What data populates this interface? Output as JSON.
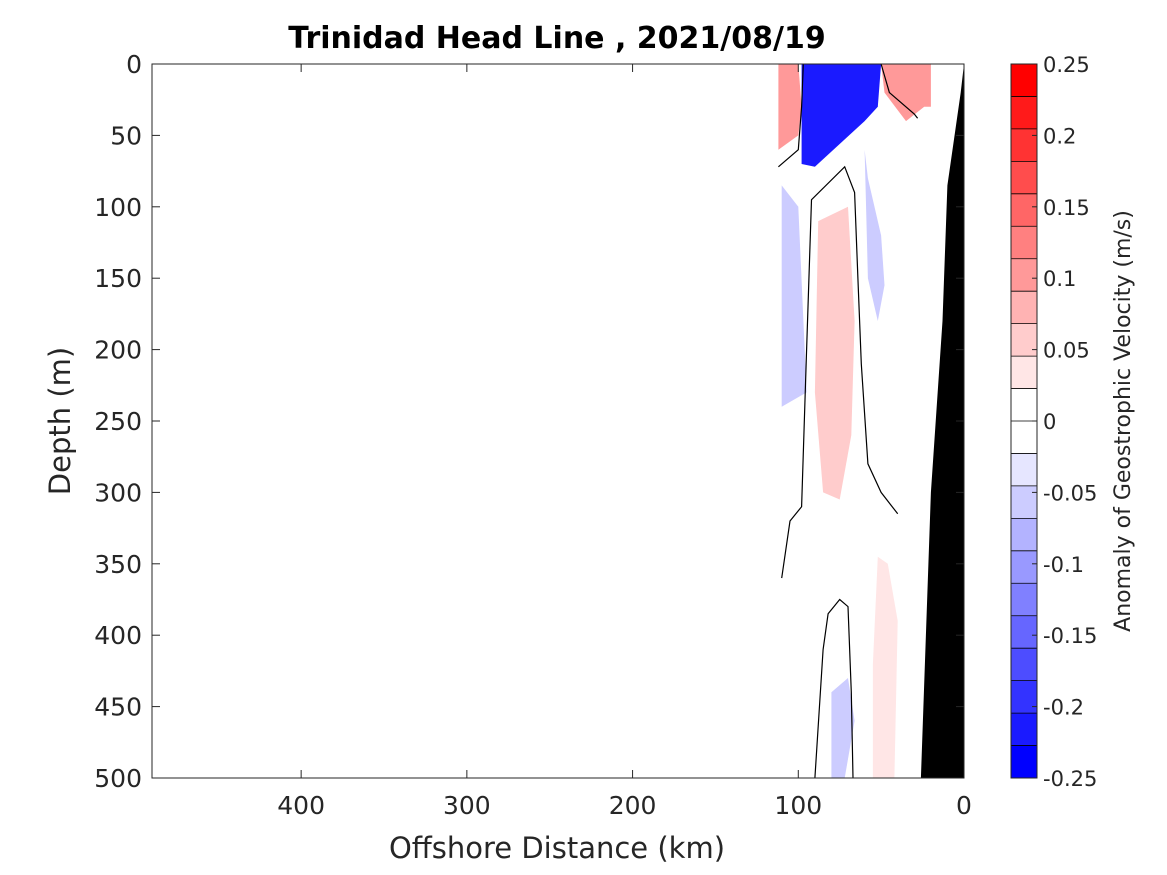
{
  "chart_data": {
    "type": "contour",
    "title": "Trinidad Head Line , 2021/08/19",
    "xlabel": "Offshore Distance (km)",
    "ylabel": "Depth (m)",
    "xlim": [
      490,
      0
    ],
    "ylim": [
      0,
      500
    ],
    "x_reversed": true,
    "y_reversed": true,
    "x_ticks": [
      "400",
      "300",
      "200",
      "100",
      "0"
    ],
    "y_ticks": [
      "0",
      "50",
      "100",
      "150",
      "200",
      "250",
      "300",
      "350",
      "400",
      "450",
      "500"
    ],
    "colorbar": {
      "label": "Anomaly of Geostrophic Velocity (m/s)",
      "range": [
        -0.25,
        0.25
      ],
      "levels": [
        -0.25,
        -0.225,
        -0.2,
        -0.175,
        -0.15,
        -0.125,
        -0.1,
        -0.075,
        -0.05,
        -0.025,
        0,
        0.025,
        0.05,
        0.075,
        0.1,
        0.125,
        0.15,
        0.175,
        0.2,
        0.225,
        0.25
      ],
      "tick_labels": [
        "0.25",
        "0.2",
        "0.15",
        "0.1",
        "0.05",
        "0",
        "-0.05",
        "-0.1",
        "-0.15",
        "-0.2",
        "-0.25"
      ],
      "colors": [
        "#0000ff",
        "#1a1aff",
        "#3333ff",
        "#4d4dff",
        "#6666ff",
        "#8080ff",
        "#9999ff",
        "#b3b3ff",
        "#ccccff",
        "#e6e6ff",
        "#ffffff",
        "#ffffff",
        "#ffe6e6",
        "#ffcccc",
        "#ffb3b3",
        "#ff9999",
        "#ff8080",
        "#ff6666",
        "#ff4d4d",
        "#ff3333",
        "#ff1a1a",
        "#ff0000"
      ]
    },
    "regions": [
      {
        "name": "surface-positive-west",
        "value": 0.1,
        "x": [
          112,
          112,
          100,
          98,
          100,
          112
        ],
        "y": [
          0,
          60,
          50,
          30,
          0,
          0
        ]
      },
      {
        "name": "surface-negative-core",
        "value": -0.22,
        "x": [
          98,
          98,
          90,
          60,
          52,
          50,
          65,
          98
        ],
        "y": [
          0,
          70,
          72,
          40,
          30,
          0,
          0,
          0
        ]
      },
      {
        "name": "surface-positive-east",
        "value": 0.12,
        "x": [
          50,
          48,
          35,
          24,
          20,
          20,
          50
        ],
        "y": [
          0,
          20,
          40,
          30,
          30,
          0,
          0
        ]
      },
      {
        "name": "upper-negative-west",
        "value": -0.04,
        "x": [
          110,
          110,
          95,
          100,
          110
        ],
        "y": [
          85,
          240,
          230,
          100,
          85
        ]
      },
      {
        "name": "midwater-positive-core",
        "value": 0.07,
        "x": [
          88,
          90,
          85,
          75,
          68,
          66,
          70,
          88
        ],
        "y": [
          110,
          230,
          300,
          305,
          260,
          180,
          100,
          110
        ]
      },
      {
        "name": "upper-negative-east",
        "value": -0.04,
        "x": [
          60,
          58,
          52,
          48,
          50,
          58,
          60
        ],
        "y": [
          60,
          150,
          180,
          155,
          120,
          80,
          60
        ]
      },
      {
        "name": "deep-positive-east",
        "value": 0.03,
        "x": [
          52,
          55,
          55,
          42,
          40,
          46,
          52
        ],
        "y": [
          345,
          420,
          500,
          500,
          390,
          350,
          345
        ]
      },
      {
        "name": "deep-negative",
        "value": -0.04,
        "x": [
          80,
          80,
          72,
          66,
          70,
          80
        ],
        "y": [
          440,
          500,
          500,
          460,
          430,
          440
        ]
      }
    ],
    "zero_contours": [
      {
        "x": [
          112,
          100,
          98,
          97
        ],
        "y": [
          72,
          60,
          30,
          0
        ]
      },
      {
        "x": [
          110,
          105,
          98,
          95,
          92,
          72,
          66,
          64,
          62,
          58,
          50,
          40
        ],
        "y": [
          360,
          320,
          310,
          200,
          95,
          72,
          90,
          150,
          210,
          280,
          300,
          315
        ]
      },
      {
        "x": [
          90,
          85,
          82,
          75,
          70,
          68,
          67
        ],
        "y": [
          500,
          410,
          385,
          375,
          380,
          440,
          500
        ]
      },
      {
        "x": [
          50,
          45,
          30,
          28
        ],
        "y": [
          0,
          20,
          35,
          38
        ]
      }
    ],
    "bathymetry": {
      "x": [
        0,
        0,
        26,
        20,
        13,
        10,
        2
      ],
      "y": [
        0,
        500,
        500,
        300,
        180,
        85,
        20
      ]
    }
  }
}
